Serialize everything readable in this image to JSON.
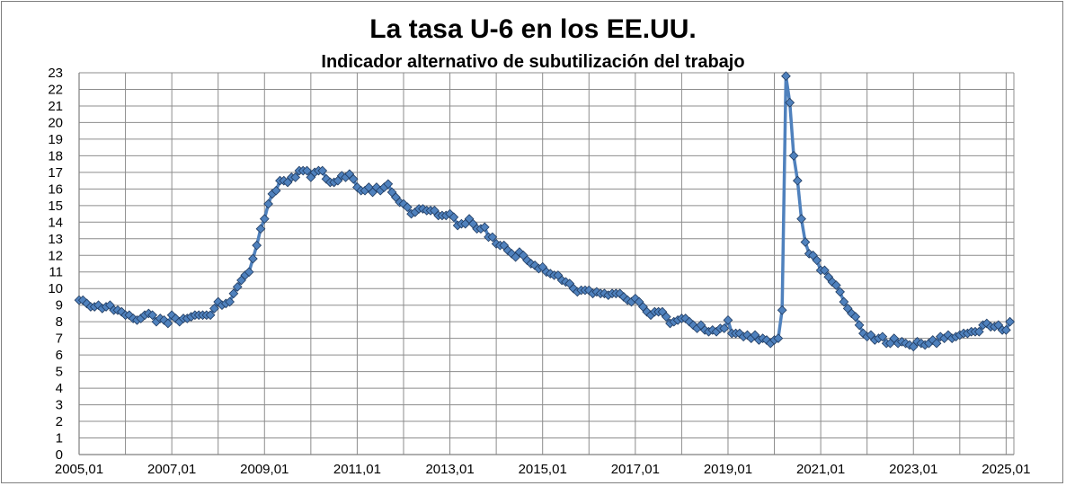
{
  "chart_data": {
    "type": "line",
    "title": "La tasa U-6 en los EE.UU.",
    "subtitle": "Indicador alternativo de subutilización del trabajo",
    "xlabel": "",
    "ylabel": "",
    "ylim": [
      0,
      23
    ],
    "y_ticks": [
      0,
      1,
      2,
      3,
      4,
      5,
      6,
      7,
      8,
      9,
      10,
      11,
      12,
      13,
      14,
      15,
      16,
      17,
      18,
      19,
      20,
      21,
      22,
      23
    ],
    "x_ticks": [
      "2005,01",
      "2007,01",
      "2009,01",
      "2011,01",
      "2013,01",
      "2015,01",
      "2017,01",
      "2019,01",
      "2021,01",
      "2023,01",
      "2025,01"
    ],
    "x_range": [
      2005.0,
      2025.167
    ],
    "grid": true,
    "legend": "none",
    "series_color": "#4f81bd",
    "marker": "diamond",
    "series": [
      {
        "values": [
          [
            2005.0,
            9.3
          ],
          [
            2005.083,
            9.3
          ],
          [
            2005.167,
            9.1
          ],
          [
            2005.25,
            8.9
          ],
          [
            2005.333,
            8.9
          ],
          [
            2005.417,
            9.0
          ],
          [
            2005.5,
            8.8
          ],
          [
            2005.583,
            8.9
          ],
          [
            2005.667,
            9.0
          ],
          [
            2005.75,
            8.7
          ],
          [
            2005.833,
            8.7
          ],
          [
            2005.917,
            8.6
          ],
          [
            2006.0,
            8.4
          ],
          [
            2006.083,
            8.4
          ],
          [
            2006.167,
            8.2
          ],
          [
            2006.25,
            8.1
          ],
          [
            2006.333,
            8.2
          ],
          [
            2006.417,
            8.4
          ],
          [
            2006.5,
            8.5
          ],
          [
            2006.583,
            8.4
          ],
          [
            2006.667,
            8.0
          ],
          [
            2006.75,
            8.2
          ],
          [
            2006.833,
            8.1
          ],
          [
            2006.917,
            7.9
          ],
          [
            2007.0,
            8.4
          ],
          [
            2007.083,
            8.2
          ],
          [
            2007.167,
            8.0
          ],
          [
            2007.25,
            8.2
          ],
          [
            2007.333,
            8.2
          ],
          [
            2007.417,
            8.3
          ],
          [
            2007.5,
            8.4
          ],
          [
            2007.583,
            8.4
          ],
          [
            2007.667,
            8.4
          ],
          [
            2007.75,
            8.4
          ],
          [
            2007.833,
            8.4
          ],
          [
            2007.917,
            8.8
          ],
          [
            2008.0,
            9.2
          ],
          [
            2008.083,
            9.0
          ],
          [
            2008.167,
            9.1
          ],
          [
            2008.25,
            9.2
          ],
          [
            2008.333,
            9.7
          ],
          [
            2008.417,
            10.1
          ],
          [
            2008.5,
            10.5
          ],
          [
            2008.583,
            10.8
          ],
          [
            2008.667,
            11.0
          ],
          [
            2008.75,
            11.8
          ],
          [
            2008.833,
            12.6
          ],
          [
            2008.917,
            13.6
          ],
          [
            2009.0,
            14.2
          ],
          [
            2009.083,
            15.1
          ],
          [
            2009.167,
            15.7
          ],
          [
            2009.25,
            15.9
          ],
          [
            2009.333,
            16.5
          ],
          [
            2009.417,
            16.5
          ],
          [
            2009.5,
            16.4
          ],
          [
            2009.583,
            16.7
          ],
          [
            2009.667,
            16.7
          ],
          [
            2009.75,
            17.1
          ],
          [
            2009.833,
            17.1
          ],
          [
            2009.917,
            17.1
          ],
          [
            2010.0,
            16.7
          ],
          [
            2010.083,
            17.0
          ],
          [
            2010.167,
            17.1
          ],
          [
            2010.25,
            17.1
          ],
          [
            2010.333,
            16.6
          ],
          [
            2010.417,
            16.4
          ],
          [
            2010.5,
            16.4
          ],
          [
            2010.583,
            16.5
          ],
          [
            2010.667,
            16.8
          ],
          [
            2010.75,
            16.7
          ],
          [
            2010.833,
            16.9
          ],
          [
            2010.917,
            16.6
          ],
          [
            2011.0,
            16.1
          ],
          [
            2011.083,
            15.9
          ],
          [
            2011.167,
            15.9
          ],
          [
            2011.25,
            16.1
          ],
          [
            2011.333,
            15.8
          ],
          [
            2011.417,
            16.1
          ],
          [
            2011.5,
            15.9
          ],
          [
            2011.583,
            16.1
          ],
          [
            2011.667,
            16.3
          ],
          [
            2011.75,
            15.8
          ],
          [
            2011.833,
            15.5
          ],
          [
            2011.917,
            15.2
          ],
          [
            2012.0,
            15.1
          ],
          [
            2012.083,
            14.9
          ],
          [
            2012.167,
            14.5
          ],
          [
            2012.25,
            14.6
          ],
          [
            2012.333,
            14.8
          ],
          [
            2012.417,
            14.8
          ],
          [
            2012.5,
            14.7
          ],
          [
            2012.583,
            14.7
          ],
          [
            2012.667,
            14.7
          ],
          [
            2012.75,
            14.4
          ],
          [
            2012.833,
            14.4
          ],
          [
            2012.917,
            14.4
          ],
          [
            2013.0,
            14.5
          ],
          [
            2013.083,
            14.3
          ],
          [
            2013.167,
            13.8
          ],
          [
            2013.25,
            13.9
          ],
          [
            2013.333,
            13.9
          ],
          [
            2013.417,
            14.2
          ],
          [
            2013.5,
            13.9
          ],
          [
            2013.583,
            13.6
          ],
          [
            2013.667,
            13.6
          ],
          [
            2013.75,
            13.7
          ],
          [
            2013.833,
            13.1
          ],
          [
            2013.917,
            13.1
          ],
          [
            2014.0,
            12.7
          ],
          [
            2014.083,
            12.6
          ],
          [
            2014.167,
            12.6
          ],
          [
            2014.25,
            12.3
          ],
          [
            2014.333,
            12.1
          ],
          [
            2014.417,
            11.9
          ],
          [
            2014.5,
            12.2
          ],
          [
            2014.583,
            12.0
          ],
          [
            2014.667,
            11.7
          ],
          [
            2014.75,
            11.5
          ],
          [
            2014.833,
            11.4
          ],
          [
            2014.917,
            11.2
          ],
          [
            2015.0,
            11.3
          ],
          [
            2015.083,
            11.0
          ],
          [
            2015.167,
            10.9
          ],
          [
            2015.25,
            10.8
          ],
          [
            2015.333,
            10.8
          ],
          [
            2015.417,
            10.5
          ],
          [
            2015.5,
            10.4
          ],
          [
            2015.583,
            10.3
          ],
          [
            2015.667,
            10.0
          ],
          [
            2015.75,
            9.8
          ],
          [
            2015.833,
            9.9
          ],
          [
            2015.917,
            9.9
          ],
          [
            2016.0,
            9.9
          ],
          [
            2016.083,
            9.7
          ],
          [
            2016.167,
            9.8
          ],
          [
            2016.25,
            9.7
          ],
          [
            2016.333,
            9.7
          ],
          [
            2016.417,
            9.6
          ],
          [
            2016.5,
            9.7
          ],
          [
            2016.583,
            9.7
          ],
          [
            2016.667,
            9.7
          ],
          [
            2016.75,
            9.5
          ],
          [
            2016.833,
            9.3
          ],
          [
            2016.917,
            9.2
          ],
          [
            2017.0,
            9.4
          ],
          [
            2017.083,
            9.2
          ],
          [
            2017.167,
            8.9
          ],
          [
            2017.25,
            8.6
          ],
          [
            2017.333,
            8.4
          ],
          [
            2017.417,
            8.6
          ],
          [
            2017.5,
            8.6
          ],
          [
            2017.583,
            8.6
          ],
          [
            2017.667,
            8.3
          ],
          [
            2017.75,
            7.9
          ],
          [
            2017.833,
            8.0
          ],
          [
            2017.917,
            8.1
          ],
          [
            2018.0,
            8.2
          ],
          [
            2018.083,
            8.2
          ],
          [
            2018.167,
            8.0
          ],
          [
            2018.25,
            7.8
          ],
          [
            2018.333,
            7.6
          ],
          [
            2018.417,
            7.8
          ],
          [
            2018.5,
            7.5
          ],
          [
            2018.583,
            7.4
          ],
          [
            2018.667,
            7.5
          ],
          [
            2018.75,
            7.4
          ],
          [
            2018.833,
            7.6
          ],
          [
            2018.917,
            7.6
          ],
          [
            2019.0,
            8.1
          ],
          [
            2019.083,
            7.3
          ],
          [
            2019.167,
            7.3
          ],
          [
            2019.25,
            7.3
          ],
          [
            2019.333,
            7.1
          ],
          [
            2019.417,
            7.2
          ],
          [
            2019.5,
            7.0
          ],
          [
            2019.583,
            7.2
          ],
          [
            2019.667,
            6.9
          ],
          [
            2019.75,
            7.0
          ],
          [
            2019.833,
            6.9
          ],
          [
            2019.917,
            6.7
          ],
          [
            2020.0,
            6.9
          ],
          [
            2020.083,
            7.0
          ],
          [
            2020.167,
            8.7
          ],
          [
            2020.25,
            22.8
          ],
          [
            2020.333,
            21.2
          ],
          [
            2020.417,
            18.0
          ],
          [
            2020.5,
            16.5
          ],
          [
            2020.583,
            14.2
          ],
          [
            2020.667,
            12.8
          ],
          [
            2020.75,
            12.1
          ],
          [
            2020.833,
            12.0
          ],
          [
            2020.917,
            11.7
          ],
          [
            2021.0,
            11.1
          ],
          [
            2021.083,
            11.1
          ],
          [
            2021.167,
            10.7
          ],
          [
            2021.25,
            10.4
          ],
          [
            2021.333,
            10.2
          ],
          [
            2021.417,
            9.8
          ],
          [
            2021.5,
            9.2
          ],
          [
            2021.583,
            8.8
          ],
          [
            2021.667,
            8.5
          ],
          [
            2021.75,
            8.3
          ],
          [
            2021.833,
            7.8
          ],
          [
            2021.917,
            7.3
          ],
          [
            2022.0,
            7.1
          ],
          [
            2022.083,
            7.2
          ],
          [
            2022.167,
            6.9
          ],
          [
            2022.25,
            7.0
          ],
          [
            2022.333,
            7.1
          ],
          [
            2022.417,
            6.7
          ],
          [
            2022.5,
            6.7
          ],
          [
            2022.583,
            7.0
          ],
          [
            2022.667,
            6.7
          ],
          [
            2022.75,
            6.8
          ],
          [
            2022.833,
            6.7
          ],
          [
            2022.917,
            6.6
          ],
          [
            2023.0,
            6.5
          ],
          [
            2023.083,
            6.8
          ],
          [
            2023.167,
            6.7
          ],
          [
            2023.25,
            6.6
          ],
          [
            2023.333,
            6.7
          ],
          [
            2023.417,
            6.9
          ],
          [
            2023.5,
            6.7
          ],
          [
            2023.583,
            7.1
          ],
          [
            2023.667,
            7.0
          ],
          [
            2023.75,
            7.2
          ],
          [
            2023.833,
            7.0
          ],
          [
            2023.917,
            7.1
          ],
          [
            2024.0,
            7.2
          ],
          [
            2024.083,
            7.3
          ],
          [
            2024.167,
            7.3
          ],
          [
            2024.25,
            7.4
          ],
          [
            2024.333,
            7.4
          ],
          [
            2024.417,
            7.4
          ],
          [
            2024.5,
            7.8
          ],
          [
            2024.583,
            7.9
          ],
          [
            2024.667,
            7.7
          ],
          [
            2024.75,
            7.7
          ],
          [
            2024.833,
            7.8
          ],
          [
            2024.917,
            7.5
          ],
          [
            2025.0,
            7.5
          ],
          [
            2025.083,
            8.0
          ]
        ]
      }
    ]
  }
}
